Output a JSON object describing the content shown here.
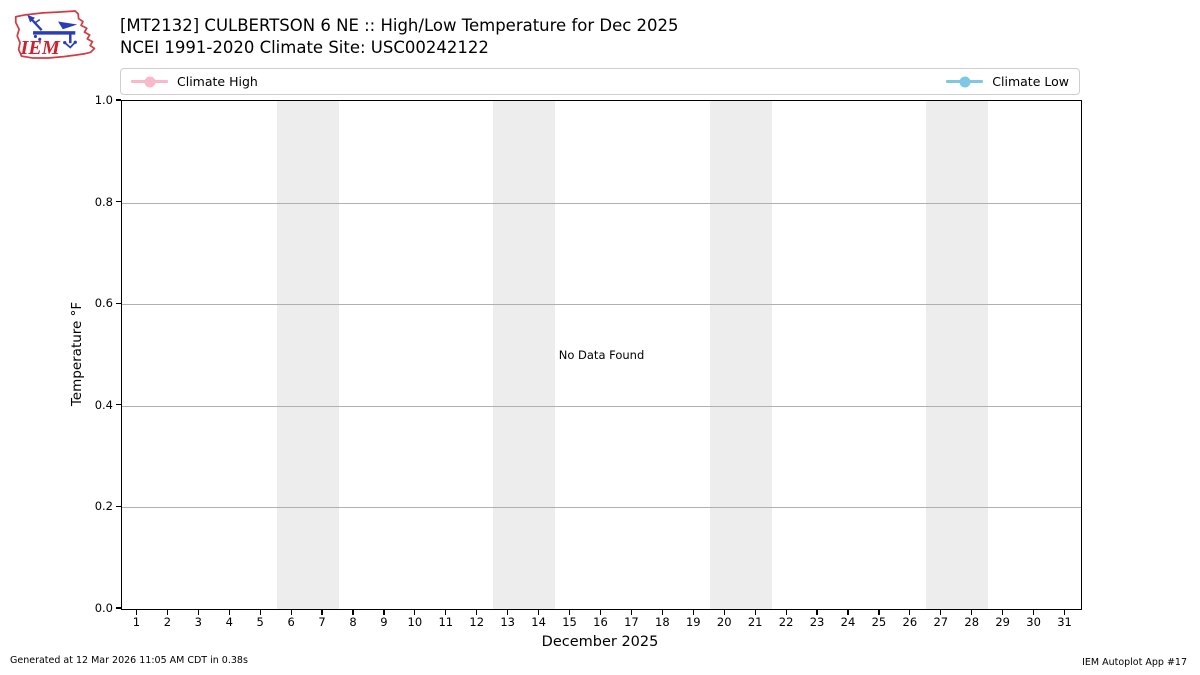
{
  "header": {
    "title_line1": "[MT2132] CULBERTSON 6 NE :: High/Low Temperature for Dec 2025",
    "title_line2": "NCEI 1991-2020 Climate Site: USC00242122",
    "logo_text": "IEM"
  },
  "legend": {
    "items": [
      {
        "label": "Climate High",
        "color": "#f9b9c8"
      },
      {
        "label": "Climate Low",
        "color": "#7ec8e6"
      }
    ]
  },
  "chart_data": {
    "type": "line",
    "title": "[MT2132] CULBERTSON 6 NE :: High/Low Temperature for Dec 2025",
    "subtitle": "NCEI 1991-2020 Climate Site: USC00242122",
    "xlabel": "December 2025",
    "ylabel": "Temperature °F",
    "xlim": [
      0.5,
      31.5
    ],
    "ylim": [
      0.0,
      1.0
    ],
    "grid": "horizontal",
    "legend_position": "top",
    "xticks": [
      "1",
      "2",
      "3",
      "4",
      "5",
      "6",
      "7",
      "8",
      "9",
      "10",
      "11",
      "12",
      "13",
      "14",
      "15",
      "16",
      "17",
      "18",
      "19",
      "20",
      "21",
      "22",
      "23",
      "24",
      "25",
      "26",
      "27",
      "28",
      "29",
      "30",
      "31"
    ],
    "yticks": [
      "0.0",
      "0.2",
      "0.4",
      "0.6",
      "0.8",
      "1.0"
    ],
    "series": [
      {
        "name": "Climate High",
        "color": "#f9b9c8",
        "x": [],
        "values": []
      },
      {
        "name": "Climate Low",
        "color": "#7ec8e6",
        "x": [],
        "values": []
      }
    ],
    "no_data_message": "No Data Found",
    "weekend_bands": [
      [
        5.5,
        7.5
      ],
      [
        12.5,
        14.5
      ],
      [
        19.5,
        21.5
      ],
      [
        26.5,
        28.5
      ]
    ],
    "band_color": "#ededed",
    "grid_color": "#b0b0b0"
  },
  "footer": {
    "left": "Generated at 12 Mar 2026 11:05 AM CDT in 0.38s",
    "right": "IEM Autoplot App #17"
  }
}
